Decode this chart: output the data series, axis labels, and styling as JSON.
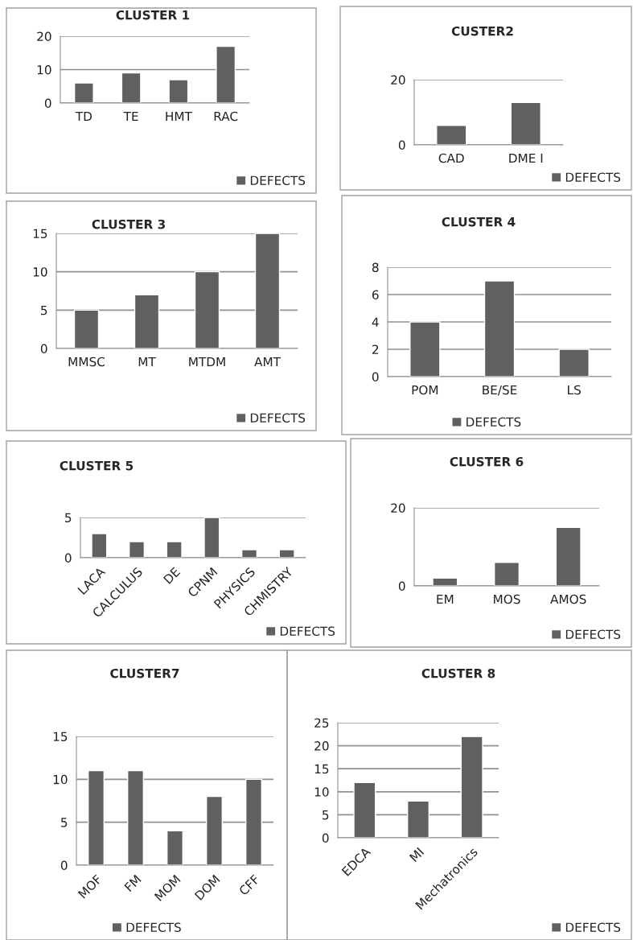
{
  "chart_data": [
    {
      "type": "bar",
      "title": "CLUSTER 1",
      "categories": [
        "TD",
        "TE",
        "HMT",
        "RAC"
      ],
      "series": [
        {
          "name": "DEFECTS",
          "color": "#606060",
          "values": [
            6,
            9,
            7,
            17
          ]
        }
      ],
      "ylim": [
        0,
        20
      ],
      "yticks": [
        0,
        10,
        20
      ],
      "grid": "y",
      "legend": "bottom right"
    },
    {
      "type": "bar",
      "title": "CUSTER2",
      "categories": [
        "CAD",
        "DME I"
      ],
      "series": [
        {
          "name": "DEFECTS",
          "color": "#606060",
          "values": [
            6,
            13
          ]
        }
      ],
      "ylim": [
        0,
        20
      ],
      "yticks": [
        0,
        20
      ],
      "grid": "y",
      "legend": "bottom right"
    },
    {
      "type": "bar",
      "title": "CLUSTER 3",
      "categories": [
        "MMSC",
        "MT",
        "MTDM",
        "AMT"
      ],
      "series": [
        {
          "name": "DEFECTS",
          "color": "#606060",
          "values": [
            5,
            7,
            10,
            15
          ]
        }
      ],
      "ylim": [
        0,
        15
      ],
      "yticks": [
        0,
        5,
        10,
        15
      ],
      "grid": "y",
      "legend": "bottom right"
    },
    {
      "type": "bar",
      "title": "CLUSTER 4",
      "categories": [
        "POM",
        "BE/SE",
        "LS"
      ],
      "series": [
        {
          "name": "DEFECTS",
          "color": "#606060",
          "values": [
            4,
            7,
            2
          ]
        }
      ],
      "ylim": [
        0,
        8
      ],
      "yticks": [
        0,
        2,
        4,
        6,
        8
      ],
      "grid": "y",
      "legend": "bottom"
    },
    {
      "type": "bar",
      "title": "CLUSTER 5",
      "categories": [
        "LACA",
        "CALCULUS",
        "DE",
        "CPNM",
        "PHYSICS",
        "CHMISTRY"
      ],
      "series": [
        {
          "name": "DEFECTS",
          "color": "#606060",
          "values": [
            3,
            2,
            2,
            5,
            1,
            1
          ]
        }
      ],
      "ylim": [
        0,
        5
      ],
      "yticks": [
        0,
        5
      ],
      "grid": "y",
      "legend": "bottom right"
    },
    {
      "type": "bar",
      "title": "CLUSTER 6",
      "categories": [
        "EM",
        "MOS",
        "AMOS"
      ],
      "series": [
        {
          "name": "DEFECTS",
          "color": "#606060",
          "values": [
            2,
            6,
            15
          ]
        }
      ],
      "ylim": [
        0,
        20
      ],
      "yticks": [
        0,
        20
      ],
      "grid": "y",
      "legend": "bottom right"
    },
    {
      "type": "bar",
      "title": "CLUSTER7",
      "categories": [
        "MOF",
        "FM",
        "MOM",
        "DOM",
        "CFF"
      ],
      "series": [
        {
          "name": "DEFECTS",
          "color": "#606060",
          "values": [
            11,
            11,
            4,
            8,
            10
          ]
        }
      ],
      "ylim": [
        0,
        15
      ],
      "yticks": [
        0,
        5,
        10,
        15
      ],
      "grid": "y",
      "legend": "bottom"
    },
    {
      "type": "bar",
      "title": "CLUSTER 8",
      "categories": [
        "EDCA",
        "MI",
        "Mechatronics"
      ],
      "series": [
        {
          "name": "DEFECTS",
          "color": "#606060",
          "values": [
            12,
            8,
            22
          ]
        }
      ],
      "ylim": [
        0,
        25
      ],
      "yticks": [
        0,
        5,
        10,
        15,
        20,
        25
      ],
      "grid": "y",
      "legend": "bottom right"
    }
  ]
}
